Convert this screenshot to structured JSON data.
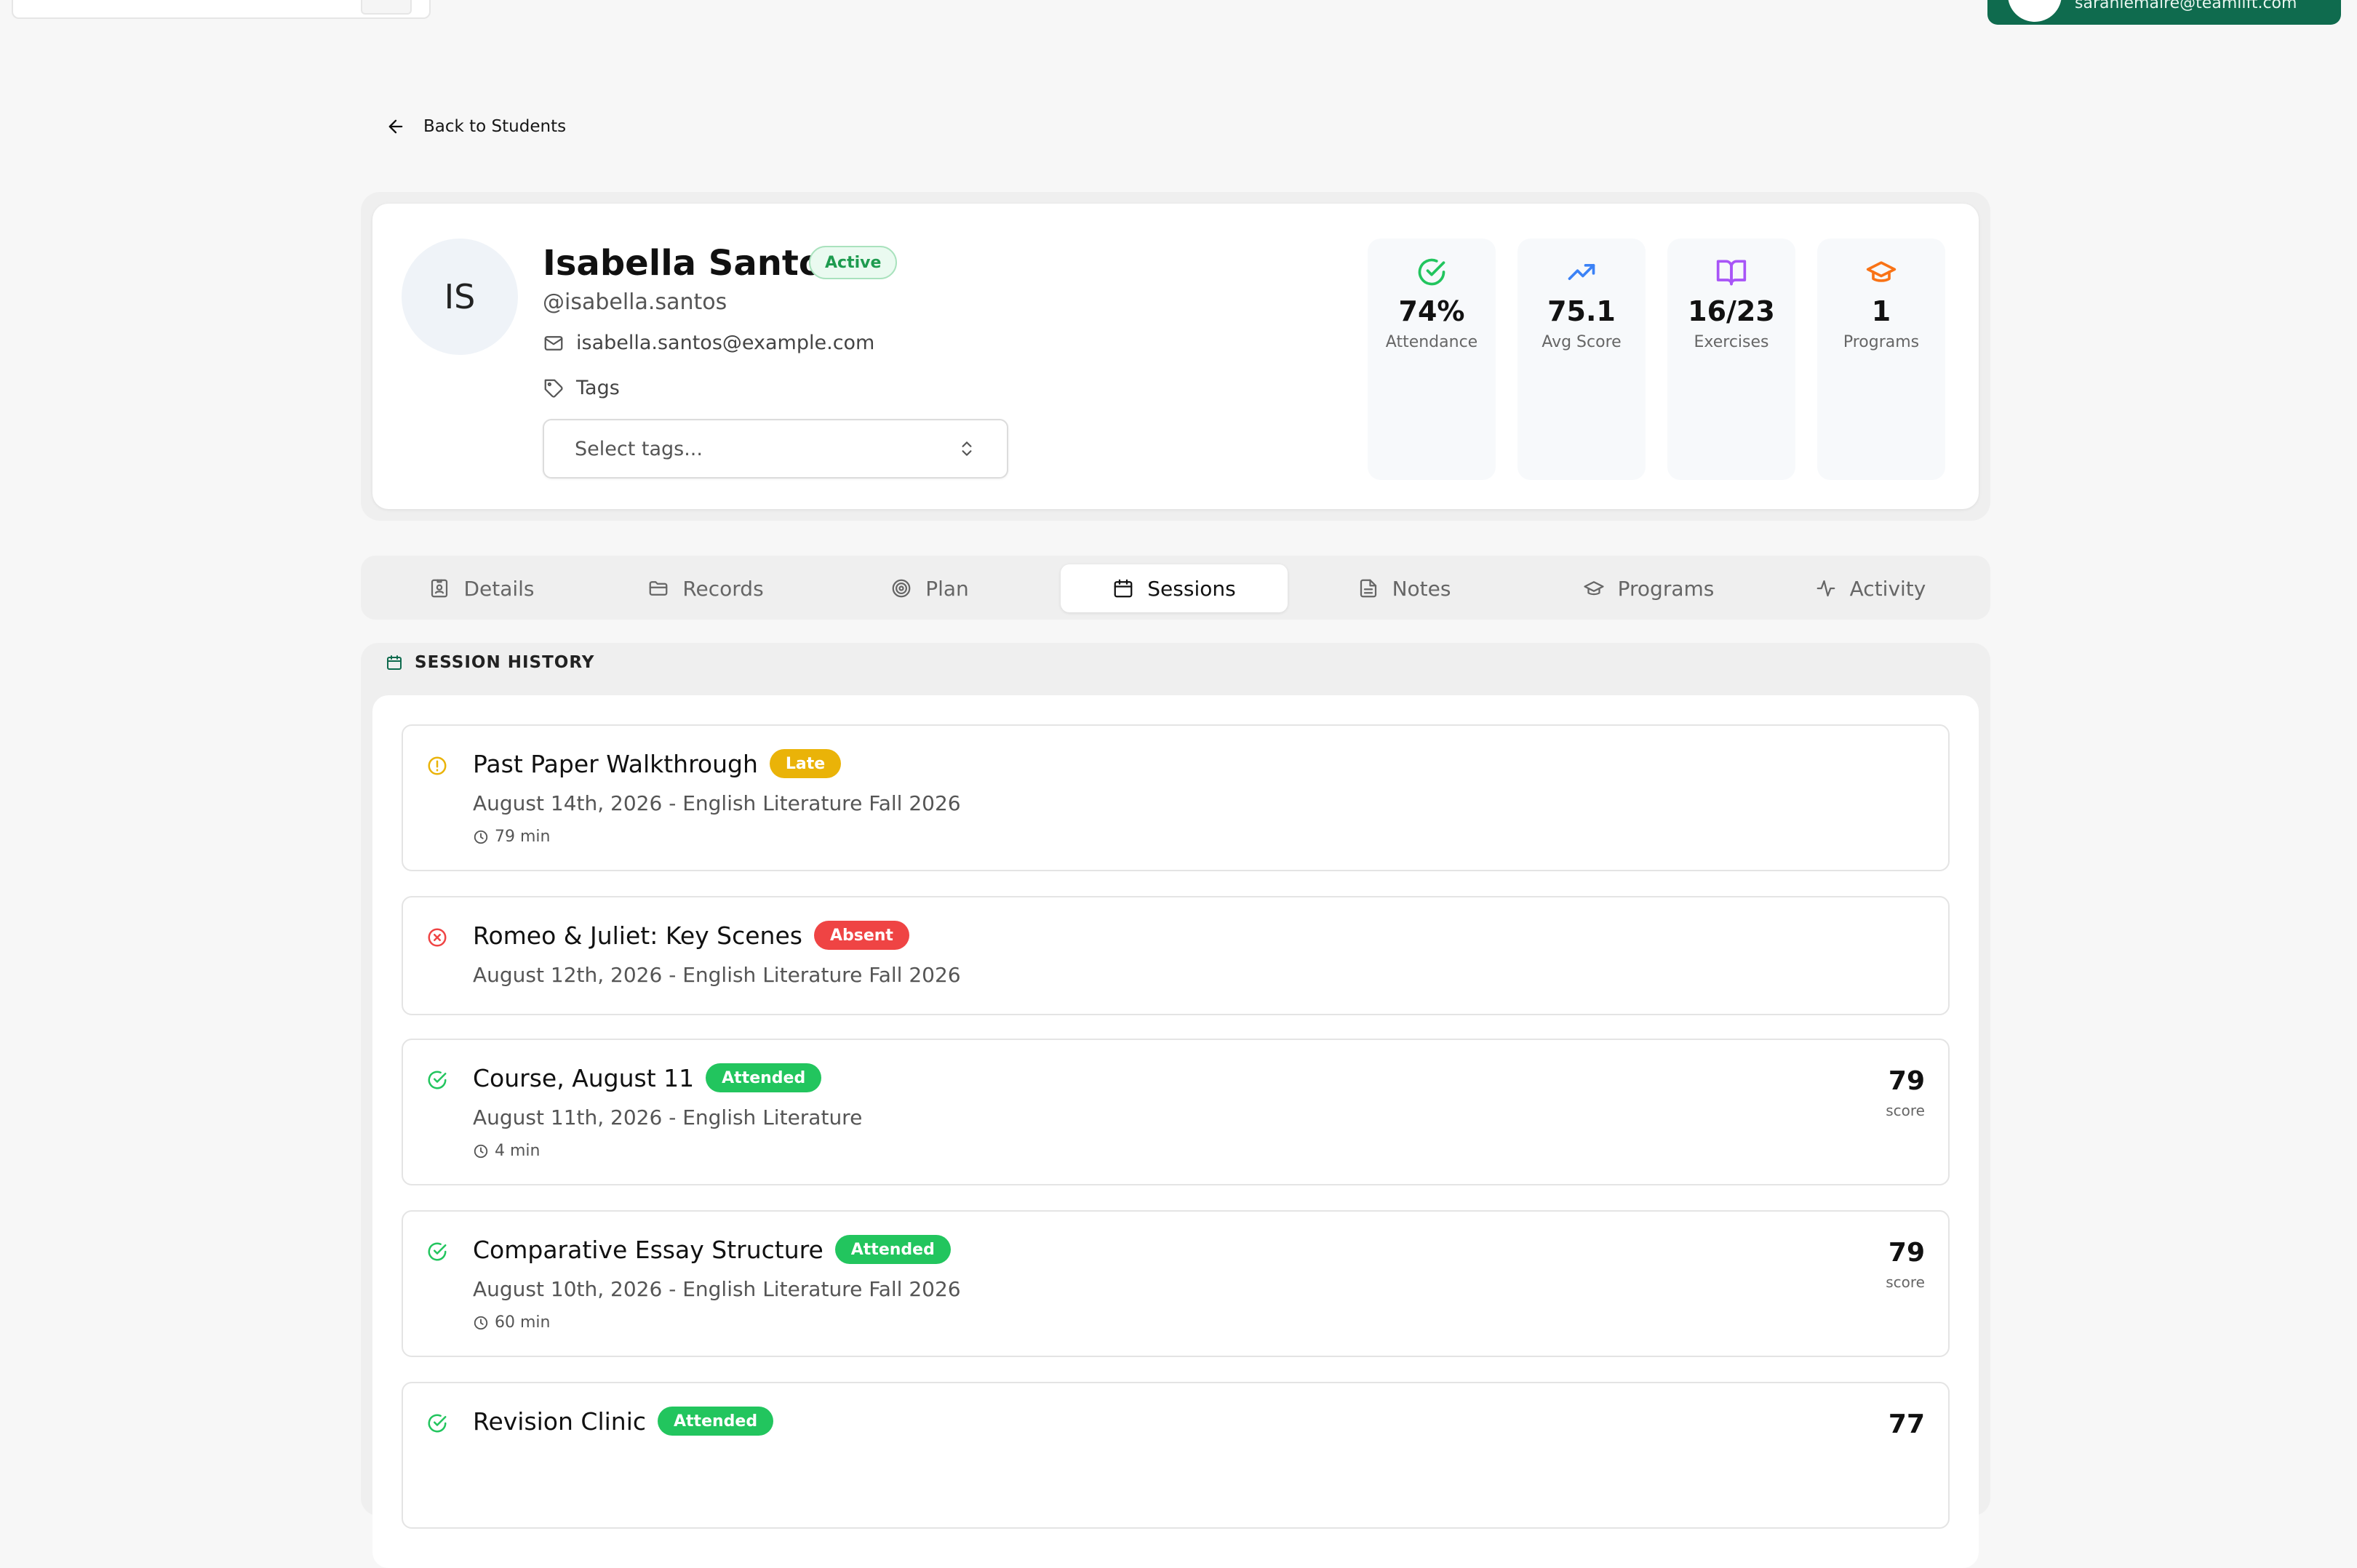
{
  "topbar": {
    "user_email": "sarahlemaire@teamlift.com"
  },
  "back": {
    "label": "Back to Students"
  },
  "profile": {
    "initials": "IS",
    "name": "Isabella Santos",
    "status": "Active",
    "handle": "@isabella.santos",
    "email": "isabella.santos@example.com",
    "tags_label": "Tags",
    "tags_placeholder": "Select tags..."
  },
  "stats": [
    {
      "value": "74%",
      "label": "Attendance",
      "icon": "check-circle-icon",
      "color": "#22c55e"
    },
    {
      "value": "75.1",
      "label": "Avg Score",
      "icon": "trending-up-icon",
      "color": "#3b82f6"
    },
    {
      "value": "16/23",
      "label": "Exercises",
      "icon": "book-open-icon",
      "color": "#a855f7"
    },
    {
      "value": "1",
      "label": "Programs",
      "icon": "graduation-cap-icon",
      "color": "#f97316"
    }
  ],
  "tabs": [
    {
      "label": "Details",
      "icon": "id-card-icon"
    },
    {
      "label": "Records",
      "icon": "folder-icon"
    },
    {
      "label": "Plan",
      "icon": "target-icon"
    },
    {
      "label": "Sessions",
      "icon": "calendar-icon",
      "active": true
    },
    {
      "label": "Notes",
      "icon": "file-text-icon"
    },
    {
      "label": "Programs",
      "icon": "graduation-cap-icon"
    },
    {
      "label": "Activity",
      "icon": "activity-icon"
    }
  ],
  "sessions_header": "SESSION HISTORY",
  "sessions": [
    {
      "title": "Past Paper Walkthrough",
      "status": "Late",
      "subtitle": "August 14th, 2026 - English Literature Fall 2026",
      "duration": "79 min",
      "score": "",
      "score_label": ""
    },
    {
      "title": "Romeo & Juliet: Key Scenes",
      "status": "Absent",
      "subtitle": "August 12th, 2026 - English Literature Fall 2026",
      "duration": "",
      "score": "",
      "score_label": ""
    },
    {
      "title": "Course, August 11",
      "status": "Attended",
      "subtitle": "August 11th, 2026 - English Literature",
      "duration": "4 min",
      "score": "79",
      "score_label": "score"
    },
    {
      "title": "Comparative Essay Structure",
      "status": "Attended",
      "subtitle": "August 10th, 2026 - English Literature Fall 2026",
      "duration": "60 min",
      "score": "79",
      "score_label": "score"
    },
    {
      "title": "Revision Clinic",
      "status": "Attended",
      "subtitle": "",
      "duration": "",
      "score": "77",
      "score_label": ""
    }
  ],
  "colors": {
    "brand": "#0f6b4e",
    "late": "#eab308",
    "absent": "#ef4444",
    "attended": "#22c55e"
  }
}
